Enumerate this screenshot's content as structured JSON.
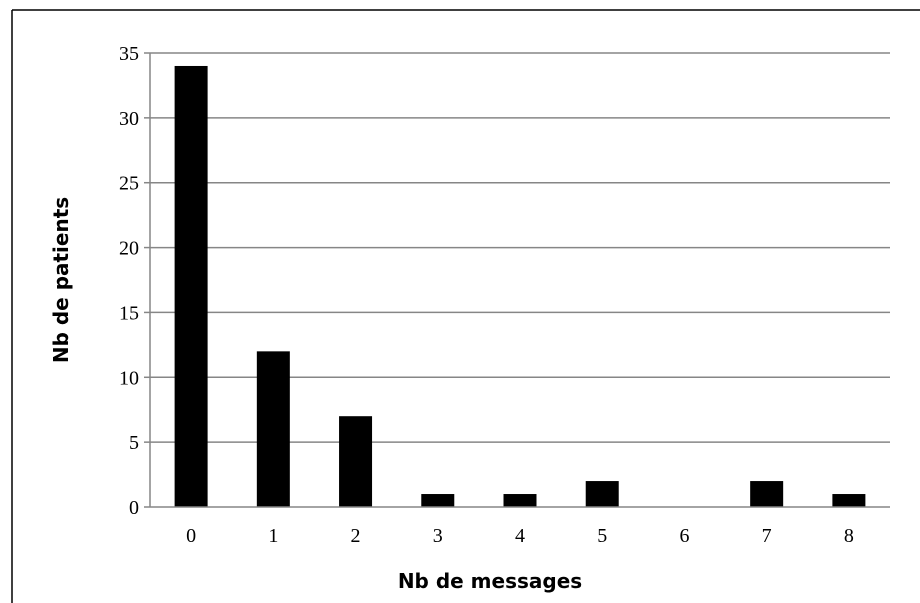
{
  "chart_data": {
    "type": "bar",
    "categories": [
      "0",
      "1",
      "2",
      "3",
      "4",
      "5",
      "6",
      "7",
      "8"
    ],
    "values": [
      34,
      12,
      7,
      1,
      1,
      2,
      0,
      2,
      1
    ],
    "xlabel": "Nb de messages",
    "ylabel": "Nb de patients",
    "ylim": [
      0,
      35
    ],
    "yticks": [
      0,
      5,
      10,
      15,
      20,
      25,
      30,
      35
    ],
    "grid": true,
    "colors": {
      "bar": "#000000",
      "grid": "#868686",
      "axis": "#868686",
      "frame": "#000000"
    }
  }
}
